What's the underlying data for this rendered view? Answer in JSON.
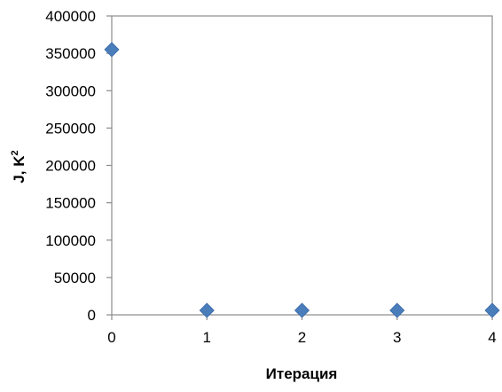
{
  "chart_data": {
    "type": "scatter",
    "title": "",
    "xlabel": "Итерация",
    "ylabel": "J, K",
    "ylabel_superscript": "2",
    "xlim": [
      0,
      4
    ],
    "ylim": [
      0,
      400000
    ],
    "x_ticks": [
      0,
      1,
      2,
      3,
      4
    ],
    "y_ticks": [
      0,
      50000,
      100000,
      150000,
      200000,
      250000,
      300000,
      350000,
      400000
    ],
    "grid": false,
    "legend": "none",
    "marker": "diamond",
    "marker_color": "#4a7ebb",
    "series": [
      {
        "x": [
          0,
          1,
          2,
          3,
          4
        ],
        "y": [
          355000,
          6000,
          6000,
          6000,
          6000
        ]
      }
    ]
  }
}
